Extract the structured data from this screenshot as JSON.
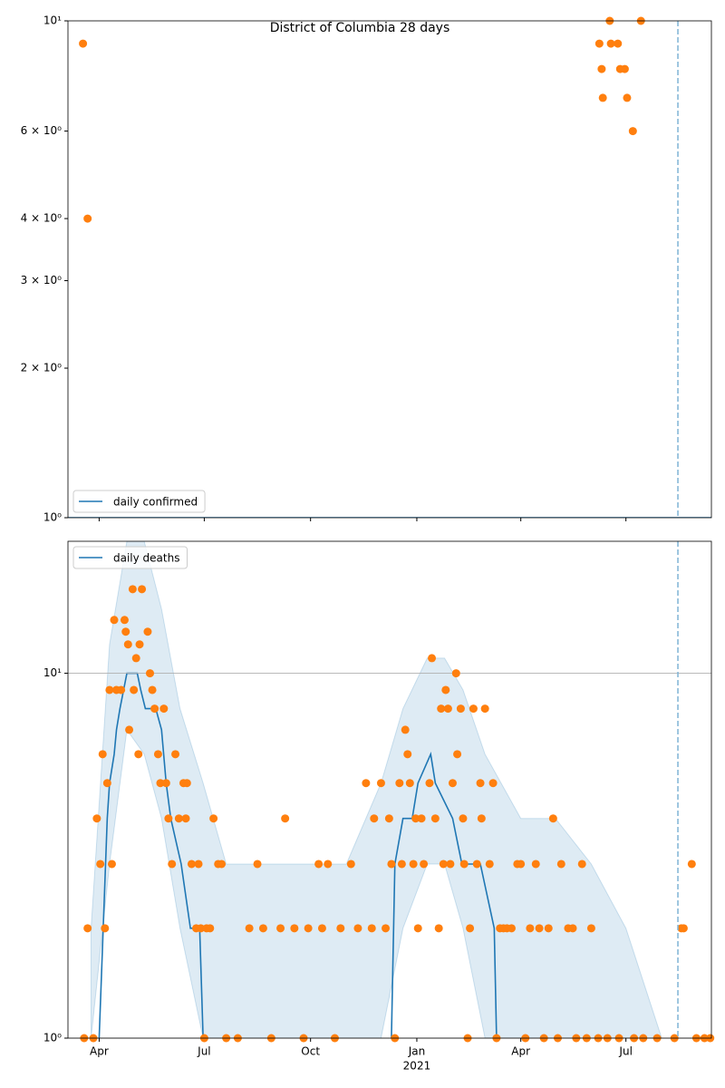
{
  "chart_data": [
    {
      "type": "scatter",
      "title": "District of Columbia 28 days",
      "xlim": [
        "2020-03-05",
        "2021-09-13"
      ],
      "xticks": [
        "2020-04-01",
        "2020-07-01",
        "2020-10-01",
        "2021-01-01",
        "2021-04-01",
        "2021-07-01"
      ],
      "ylim": [
        1,
        10
      ],
      "log_y": true,
      "yticks": [
        {
          "value": 1,
          "label": "10⁰"
        },
        {
          "value": 2,
          "label": "2 × 10⁰"
        },
        {
          "value": 3,
          "label": "3 × 10⁰"
        },
        {
          "value": 4,
          "label": "4 × 10⁰"
        },
        {
          "value": 6,
          "label": "6 × 10⁰"
        },
        {
          "value": 10,
          "label": "10¹"
        }
      ],
      "grid": false,
      "legend": "lower left",
      "vline": "2021-08-15",
      "vline_color": "#7fb3d5",
      "series": [
        {
          "name": "daily confirmed",
          "type": "line",
          "color": "#1f77b4",
          "x": [
            "2020-03-05",
            "2021-09-13"
          ],
          "values": [
            1,
            1
          ]
        },
        {
          "type": "scatter",
          "color": "#ff7f0e",
          "x": [
            "2020-03-18",
            "2020-03-22",
            "2021-06-08",
            "2021-06-10",
            "2021-06-11",
            "2021-06-17",
            "2021-06-18",
            "2021-06-24",
            "2021-06-26",
            "2021-06-30",
            "2021-07-02",
            "2021-07-07",
            "2021-07-14"
          ],
          "values": [
            9,
            4,
            9,
            8,
            7,
            10,
            9,
            9,
            8,
            8,
            7,
            6,
            10
          ]
        }
      ]
    },
    {
      "type": "scatter",
      "xlim": [
        "2020-03-05",
        "2021-09-13"
      ],
      "xticks": [
        {
          "value": "2020-04-01",
          "label": "Apr"
        },
        {
          "value": "2020-07-01",
          "label": "Jul"
        },
        {
          "value": "2020-10-01",
          "label": "Oct"
        },
        {
          "value": "2021-01-01",
          "label": "Jan",
          "sublabel": "2021"
        },
        {
          "value": "2021-04-01",
          "label": "Apr"
        },
        {
          "value": "2021-07-01",
          "label": "Jul"
        }
      ],
      "ylim": [
        1,
        23
      ],
      "log_y": true,
      "yticks": [
        {
          "value": 1,
          "label": "10⁰"
        },
        {
          "value": 10,
          "label": "10¹"
        }
      ],
      "grid": true,
      "legend": "upper left",
      "vline": "2021-08-15",
      "vline_color": "#7fb3d5",
      "series": [
        {
          "type": "band",
          "color": "#1f77b4",
          "x": [
            "2020-03-25",
            "2020-04-10",
            "2020-04-25",
            "2020-05-10",
            "2020-05-25",
            "2020-06-10",
            "2020-06-30",
            "2020-07-20",
            "2020-09-01",
            "2020-11-01",
            "2020-12-01",
            "2020-12-20",
            "2021-01-10",
            "2021-01-25",
            "2021-02-10",
            "2021-03-01",
            "2021-04-01",
            "2021-05-01",
            "2021-06-01",
            "2021-07-01",
            "2021-08-01"
          ],
          "lower": [
            1,
            3,
            7,
            6,
            4,
            2,
            1,
            1,
            1,
            1,
            1,
            2,
            3,
            3,
            2,
            1,
            1,
            1,
            1,
            1,
            1
          ],
          "upper": [
            2,
            12,
            23,
            23,
            15,
            8,
            5,
            3,
            3,
            3,
            5,
            8,
            11,
            11,
            9,
            6,
            4,
            4,
            3,
            2,
            1
          ]
        },
        {
          "name": "daily deaths",
          "type": "line",
          "color": "#1f77b4",
          "x": [
            "2020-04-01",
            "2020-04-08",
            "2020-04-10",
            "2020-04-14",
            "2020-04-16",
            "2020-04-19",
            "2020-04-25",
            "2020-05-04",
            "2020-05-07",
            "2020-05-11",
            "2020-05-20",
            "2020-05-25",
            "2020-05-29",
            "2020-06-02",
            "2020-06-11",
            "2020-06-19",
            "2020-06-27",
            "2020-06-30",
            "2020-09-01",
            "2020-12-10",
            "2020-12-13",
            "2020-12-20",
            "2020-12-28",
            "2021-01-02",
            "2021-01-13",
            "2021-01-17",
            "2021-02-01",
            "2021-02-09",
            "2021-02-25",
            "2021-03-09",
            "2021-03-11"
          ],
          "values": [
            1,
            4,
            5,
            6,
            7,
            8,
            10,
            10,
            9,
            8,
            8,
            7,
            5,
            4,
            3,
            2,
            2,
            1,
            null,
            1,
            3,
            4,
            4,
            5,
            6,
            5,
            4,
            3,
            3,
            2,
            1
          ]
        },
        {
          "type": "scatter",
          "color": "#ff7f0e",
          "x": [
            "2020-03-19",
            "2020-03-22",
            "2020-03-27",
            "2020-03-30",
            "2020-04-02",
            "2020-04-04",
            "2020-04-06",
            "2020-04-08",
            "2020-04-10",
            "2020-04-12",
            "2020-04-14",
            "2020-04-16",
            "2020-04-20",
            "2020-04-23",
            "2020-04-24",
            "2020-04-26",
            "2020-04-27",
            "2020-04-30",
            "2020-05-01",
            "2020-05-03",
            "2020-05-05",
            "2020-05-06",
            "2020-05-08",
            "2020-05-13",
            "2020-05-15",
            "2020-05-17",
            "2020-05-19",
            "2020-05-22",
            "2020-05-24",
            "2020-05-27",
            "2020-05-29",
            "2020-05-31",
            "2020-06-03",
            "2020-06-06",
            "2020-06-09",
            "2020-06-13",
            "2020-06-15",
            "2020-06-16",
            "2020-06-20",
            "2020-06-24",
            "2020-06-26",
            "2020-06-28",
            "2020-07-01",
            "2020-07-03",
            "2020-07-06",
            "2020-07-09",
            "2020-07-13",
            "2020-07-16",
            "2020-07-20",
            "2020-07-30",
            "2020-08-09",
            "2020-08-16",
            "2020-08-21",
            "2020-08-28",
            "2020-09-05",
            "2020-09-09",
            "2020-09-17",
            "2020-09-25",
            "2020-09-29",
            "2020-10-08",
            "2020-10-11",
            "2020-10-16",
            "2020-10-22",
            "2020-10-27",
            "2020-11-05",
            "2020-11-11",
            "2020-11-18",
            "2020-11-23",
            "2020-11-25",
            "2020-12-01",
            "2020-12-05",
            "2020-12-08",
            "2020-12-10",
            "2020-12-13",
            "2020-12-17",
            "2020-12-19",
            "2020-12-22",
            "2020-12-24",
            "2020-12-26",
            "2020-12-29",
            "2020-12-31",
            "2021-01-02",
            "2021-01-05",
            "2021-01-07",
            "2021-01-12",
            "2021-01-14",
            "2021-01-17",
            "2021-01-20",
            "2021-01-22",
            "2021-01-24",
            "2021-01-26",
            "2021-01-28",
            "2021-01-30",
            "2021-02-01",
            "2021-02-04",
            "2021-02-05",
            "2021-02-08",
            "2021-02-10",
            "2021-02-11",
            "2021-02-14",
            "2021-02-16",
            "2021-02-19",
            "2021-02-22",
            "2021-02-25",
            "2021-02-26",
            "2021-03-01",
            "2021-03-05",
            "2021-03-08",
            "2021-03-11",
            "2021-03-14",
            "2021-03-17",
            "2021-03-20",
            "2021-03-24",
            "2021-03-29",
            "2021-04-01",
            "2021-04-05",
            "2021-04-09",
            "2021-04-14",
            "2021-04-17",
            "2021-04-21",
            "2021-04-25",
            "2021-04-29",
            "2021-05-03",
            "2021-05-06",
            "2021-05-12",
            "2021-05-16",
            "2021-05-19",
            "2021-05-24",
            "2021-05-28",
            "2021-06-01",
            "2021-06-07",
            "2021-06-15",
            "2021-06-25",
            "2021-07-08",
            "2021-07-16",
            "2021-07-28",
            "2021-08-12",
            "2021-08-18",
            "2021-08-20",
            "2021-08-27",
            "2021-08-31",
            "2021-09-07",
            "2021-09-12"
          ],
          "values": [
            1,
            2,
            1,
            4,
            3,
            6,
            2,
            5,
            9,
            3,
            14,
            9,
            9,
            14,
            13,
            12,
            7,
            17,
            9,
            11,
            6,
            12,
            17,
            13,
            10,
            9,
            8,
            6,
            5,
            8,
            5,
            4,
            3,
            6,
            4,
            5,
            4,
            5,
            3,
            2,
            3,
            2,
            1,
            2,
            2,
            4,
            3,
            3,
            1,
            1,
            2,
            3,
            2,
            1,
            2,
            4,
            2,
            1,
            2,
            3,
            2,
            3,
            1,
            2,
            3,
            2,
            5,
            2,
            4,
            5,
            2,
            4,
            3,
            1,
            5,
            3,
            7,
            6,
            5,
            3,
            4,
            2,
            4,
            3,
            5,
            11,
            4,
            2,
            8,
            3,
            9,
            8,
            3,
            5,
            10,
            6,
            8,
            4,
            3,
            1,
            2,
            8,
            3,
            5,
            4,
            8,
            3,
            5,
            1,
            2,
            2,
            2,
            2,
            3,
            3,
            1,
            2,
            3,
            2,
            1,
            2,
            4,
            1,
            3,
            2,
            2,
            1,
            3,
            1,
            2,
            1,
            1,
            1,
            1,
            1,
            1,
            1,
            2,
            2,
            3,
            1,
            1,
            1
          ]
        }
      ]
    }
  ]
}
